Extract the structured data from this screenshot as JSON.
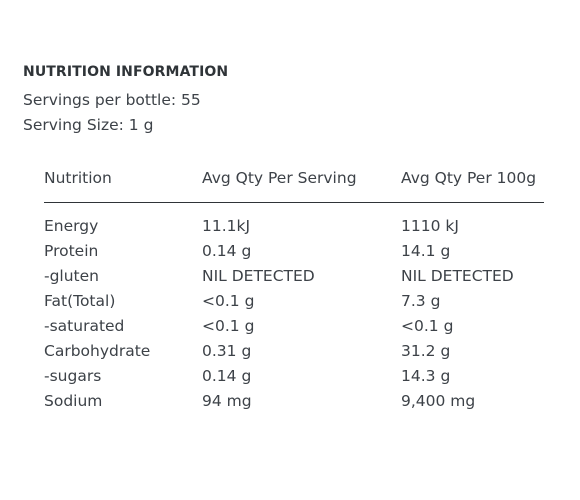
{
  "title": "NUTRITION INFORMATION",
  "servings_per_bottle": "Servings per bottle: 55",
  "serving_size": "Serving Size: 1 g",
  "table": {
    "headers": [
      "Nutrition",
      "Avg Qty Per Serving",
      "Avg Qty Per 100g"
    ],
    "rows": [
      [
        "Energy",
        "11.1kJ",
        "1110 kJ"
      ],
      [
        "Protein",
        "0.14 g",
        "14.1 g"
      ],
      [
        "-gluten",
        "NIL DETECTED",
        "NIL DETECTED"
      ],
      [
        "Fat(Total)",
        "<0.1 g",
        "7.3 g"
      ],
      [
        "-saturated",
        "<0.1 g",
        "<0.1 g"
      ],
      [
        "Carbohydrate",
        "0.31 g",
        "31.2 g"
      ],
      [
        "-sugars",
        "0.14 g",
        "14.3 g"
      ],
      [
        "Sodium",
        "94 mg",
        "9,400 mg"
      ]
    ]
  }
}
